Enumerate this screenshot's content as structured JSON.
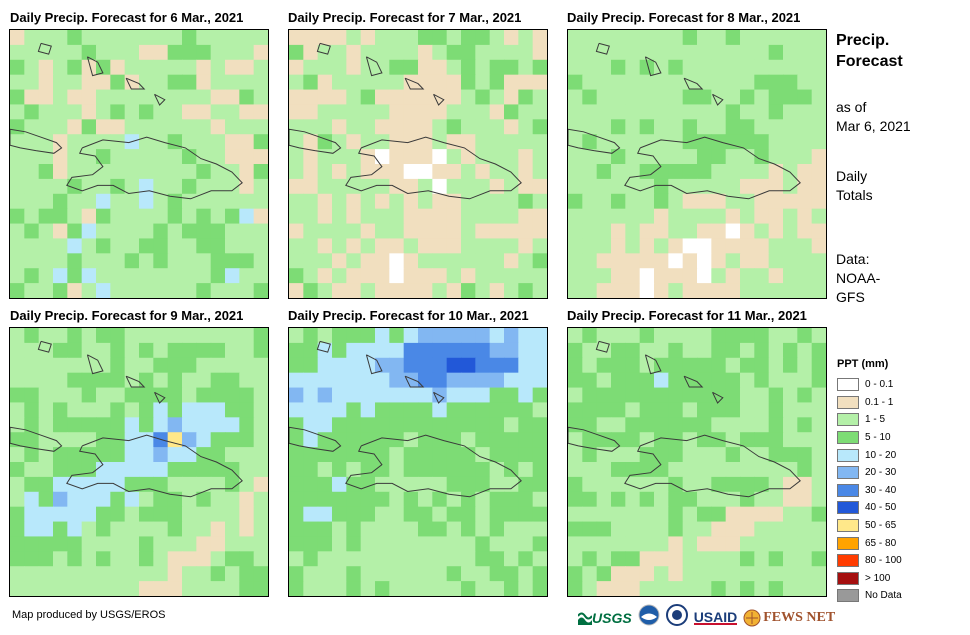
{
  "panels": [
    {
      "title": "Daily Precip. Forecast for 6 Mar., 2021"
    },
    {
      "title": "Daily Precip. Forecast for 7 Mar., 2021"
    },
    {
      "title": "Daily Precip. Forecast for 8 Mar., 2021"
    },
    {
      "title": "Daily Precip. Forecast for 9 Mar., 2021"
    },
    {
      "title": "Daily Precip. Forecast for 10 Mar., 2021"
    },
    {
      "title": "Daily Precip. Forecast for 11 Mar., 2021"
    }
  ],
  "sidebar": {
    "title_line1": "Precip.",
    "title_line2": "Forecast",
    "asof_line1": "as of",
    "asof_line2": "Mar 6, 2021",
    "totals_line1": "Daily",
    "totals_line2": "Totals",
    "data_line1": "Data:",
    "data_line2": "NOAA-",
    "data_line3": "GFS"
  },
  "legend": {
    "title": "PPT (mm)",
    "items": [
      {
        "label": "0 - 0.1",
        "color": "#ffffff"
      },
      {
        "label": "0.1 - 1",
        "color": "#f1dfbf"
      },
      {
        "label": "1 - 5",
        "color": "#b4f0a8"
      },
      {
        "label": "5 - 10",
        "color": "#7ddc75"
      },
      {
        "label": "10 - 20",
        "color": "#b8e8fb"
      },
      {
        "label": "20 - 30",
        "color": "#82b7f2"
      },
      {
        "label": "30 - 40",
        "color": "#4a88e6"
      },
      {
        "label": "40 - 50",
        "color": "#2258d8"
      },
      {
        "label": "50 - 65",
        "color": "#ffe88a"
      },
      {
        "label": "65 - 80",
        "color": "#ffa300"
      },
      {
        "label": "80 - 100",
        "color": "#ff3c00"
      },
      {
        "label": "> 100",
        "color": "#a50f0f"
      },
      {
        "label": "No Data",
        "color": "#999999"
      }
    ]
  },
  "credit": "Map produced by USGS/EROS",
  "logos": {
    "usgs": "USGS",
    "usaid": "USAID",
    "fewsnet": "FEWS NET"
  },
  "icons": [
    "usgs-logo",
    "noaa-logo",
    "usaid-seal-logo",
    "usaid-logo",
    "fews-net-logo"
  ]
}
